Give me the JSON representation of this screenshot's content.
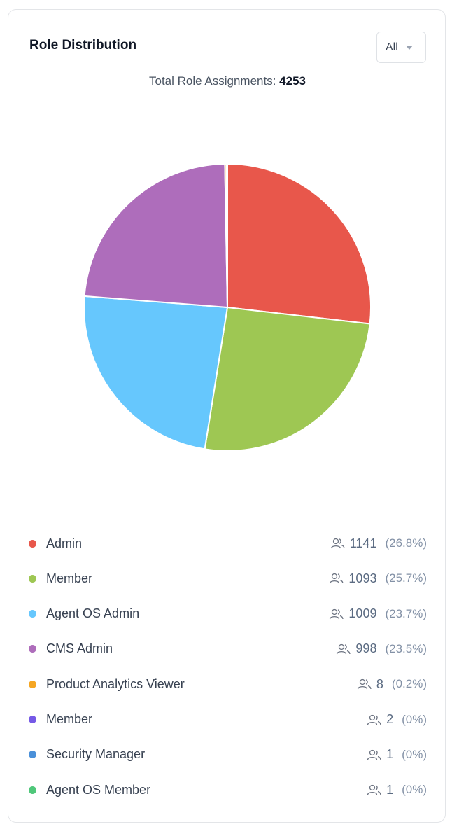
{
  "chart_data": {
    "type": "pie",
    "title": "Role Distribution",
    "filter_label": "All",
    "total_label": "Total Role Assignments:",
    "total": 4253,
    "categories": [
      "Admin",
      "Member",
      "Agent OS Admin",
      "CMS Admin",
      "Product Analytics Viewer",
      "Member",
      "Security Manager",
      "Agent OS Member"
    ],
    "values": [
      1141,
      1093,
      1009,
      998,
      8,
      2,
      1,
      1
    ],
    "percent_labels": [
      "(26.8%)",
      "(25.7%)",
      "(23.7%)",
      "(23.5%)",
      "(0.2%)",
      "(0%)",
      "(0%)",
      "(0%)"
    ],
    "colors": [
      "#e8574b",
      "#9ec753",
      "#66c7fd",
      "#ae6dbb",
      "#f5a623",
      "#7559e6",
      "#4a90d9",
      "#4fc77a"
    ]
  }
}
